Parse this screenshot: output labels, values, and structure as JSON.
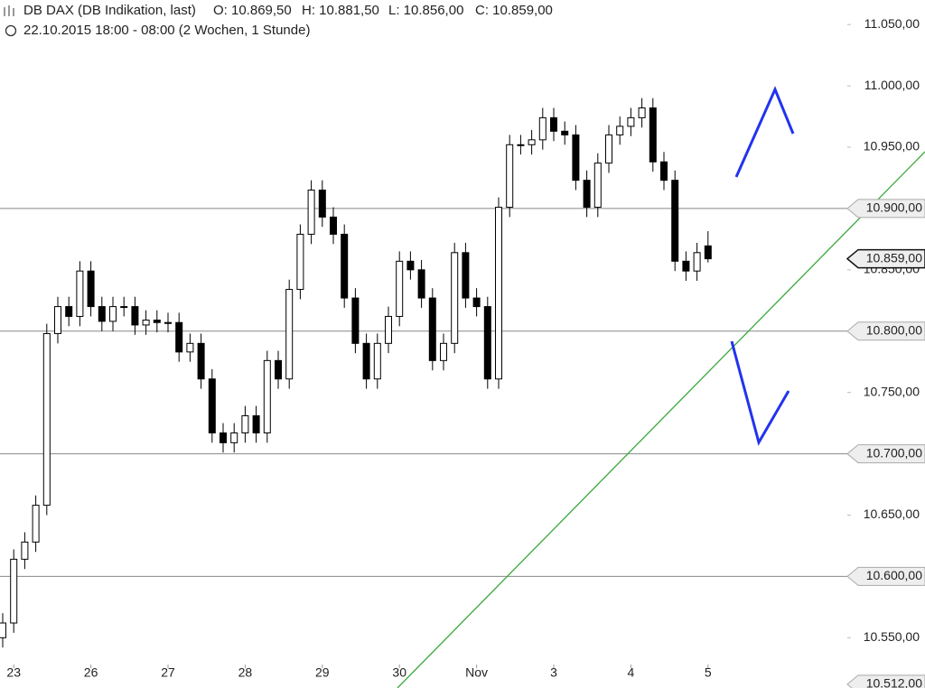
{
  "chart_data": {
    "type": "candlestick",
    "header": {
      "symbol": "DB DAX (DB Indikation, last)",
      "open": "O: 10.869,50",
      "high": "H: 10.881,50",
      "low": "L: 10.856,00",
      "close": "C: 10.859,00",
      "period": "22.10.2015 18:00 - 08:00 (2 Wochen, 1 Stunde)"
    },
    "categories": [
      null,
      "23",
      null,
      null,
      null,
      null,
      null,
      null,
      "26",
      null,
      null,
      null,
      null,
      null,
      null,
      "27",
      null,
      null,
      null,
      null,
      null,
      null,
      "28",
      null,
      null,
      null,
      null,
      null,
      null,
      "29",
      null,
      null,
      null,
      null,
      null,
      null,
      "30",
      null,
      null,
      null,
      null,
      null,
      null,
      "Nov",
      null,
      null,
      null,
      null,
      null,
      null,
      "3",
      null,
      null,
      null,
      null,
      null,
      null,
      "4",
      null,
      null,
      null,
      null,
      null,
      null,
      "5"
    ],
    "open": [
      10550,
      10562,
      10614,
      10628,
      10658,
      10798,
      10820,
      10812,
      10849,
      10820,
      10808,
      10820,
      10820,
      10805,
      10809,
      10807,
      10807,
      10783,
      10790,
      10761,
      10717,
      10709,
      10717,
      10731,
      10717,
      10776,
      10761,
      10834,
      10879,
      10915,
      10893,
      10879,
      10827,
      10790,
      10761,
      10790,
      10812,
      10857,
      10850,
      10827,
      10776,
      10790,
      10864,
      10827,
      10820,
      10761,
      10901,
      10952,
      10952,
      10956,
      10974,
      10963,
      10960,
      10923,
      10901,
      10937,
      10960,
      10967,
      10974,
      10982,
      10938,
      10923,
      10857,
      10849,
      10869.5
    ],
    "high": [
      10570,
      10622,
      10636,
      10666,
      10806,
      10828,
      10828,
      10857,
      10857,
      10828,
      10828,
      10828,
      10828,
      10817,
      10817,
      10815,
      10815,
      10798,
      10798,
      10769,
      10725,
      10725,
      10739,
      10739,
      10784,
      10784,
      10842,
      10887,
      10923,
      10923,
      10901,
      10887,
      10835,
      10798,
      10798,
      10820,
      10865,
      10865,
      10858,
      10835,
      10798,
      10872,
      10872,
      10835,
      10828,
      10909,
      10960,
      10960,
      10964,
      10982,
      10982,
      10971,
      10968,
      10931,
      10945,
      10968,
      10975,
      10982,
      10990,
      10990,
      10946,
      10931,
      10865,
      10872,
      10881.5
    ],
    "low": [
      10542,
      10554,
      10606,
      10620,
      10650,
      10790,
      10804,
      10804,
      10812,
      10800,
      10800,
      10812,
      10797,
      10797,
      10799,
      10799,
      10775,
      10775,
      10753,
      10709,
      10701,
      10701,
      10709,
      10709,
      10709,
      10753,
      10753,
      10826,
      10871,
      10885,
      10871,
      10819,
      10782,
      10753,
      10753,
      10782,
      10804,
      10842,
      10819,
      10768,
      10768,
      10782,
      10819,
      10812,
      10753,
      10753,
      10893,
      10944,
      10944,
      10948,
      10955,
      10952,
      10915,
      10893,
      10893,
      10929,
      10952,
      10959,
      10966,
      10930,
      10915,
      10849,
      10841,
      10841,
      10856
    ],
    "close": [
      10562,
      10614,
      10628,
      10658,
      10798,
      10820,
      10812,
      10849,
      10820,
      10808,
      10820,
      10820,
      10805,
      10809,
      10807,
      10807,
      10783,
      10790,
      10761,
      10717,
      10709,
      10717,
      10731,
      10717,
      10776,
      10761,
      10834,
      10879,
      10915,
      10893,
      10879,
      10827,
      10790,
      10761,
      10790,
      10812,
      10857,
      10850,
      10827,
      10776,
      10790,
      10864,
      10827,
      10820,
      10761,
      10901,
      10952,
      10952,
      10956,
      10974,
      10963,
      10960,
      10923,
      10901,
      10937,
      10960,
      10967,
      10974,
      10982,
      10938,
      10923,
      10857,
      10849,
      10864,
      10859
    ],
    "ylim": [
      10509,
      11070
    ],
    "yticks": [
      {
        "value": 10550,
        "label": "10.550,00"
      },
      {
        "value": 10650,
        "label": "10.650,00"
      },
      {
        "value": 10750,
        "label": "10.750,00"
      },
      {
        "value": 10850,
        "label": "10.850,00"
      },
      {
        "value": 10950,
        "label": "10.950,00"
      },
      {
        "value": 11000,
        "label": "11.000,00"
      },
      {
        "value": 11050,
        "label": "11.050,00"
      }
    ],
    "levels": [
      {
        "value": 10600,
        "label": "10.600,00"
      },
      {
        "value": 10700,
        "label": "10.700,00"
      },
      {
        "value": 10800,
        "label": "10.800,00"
      },
      {
        "value": 10900,
        "label": "10.900,00"
      }
    ],
    "current": {
      "value": 10859,
      "label": "10.859,00"
    },
    "bottom_marker": {
      "value": 10512,
      "label": "10.512,00"
    },
    "up_color": "#ffffff",
    "down_color": "#000000",
    "level_color": "#888888"
  }
}
